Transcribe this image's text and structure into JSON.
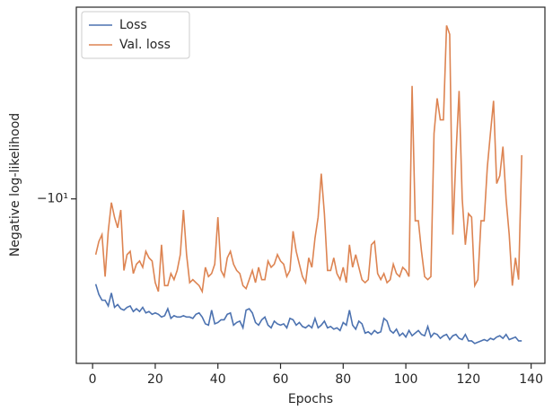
{
  "chart_data": {
    "type": "line",
    "xlabel": "Epochs",
    "ylabel": "Negative log-likelihood",
    "x": [
      1,
      2,
      3,
      4,
      5,
      6,
      7,
      8,
      9,
      10,
      11,
      12,
      13,
      14,
      15,
      16,
      17,
      18,
      19,
      20,
      21,
      22,
      23,
      24,
      25,
      26,
      27,
      28,
      29,
      30,
      31,
      32,
      33,
      34,
      35,
      36,
      37,
      38,
      39,
      40,
      41,
      42,
      43,
      44,
      45,
      46,
      47,
      48,
      49,
      50,
      51,
      52,
      53,
      54,
      55,
      56,
      57,
      58,
      59,
      60,
      61,
      62,
      63,
      64,
      65,
      66,
      67,
      68,
      69,
      70,
      71,
      72,
      73,
      74,
      75,
      76,
      77,
      78,
      79,
      80,
      81,
      82,
      83,
      84,
      85,
      86,
      87,
      88,
      89,
      90,
      91,
      92,
      93,
      94,
      95,
      96,
      97,
      98,
      99,
      100,
      101,
      102,
      103,
      104,
      105,
      106,
      107,
      108,
      109,
      110,
      111,
      112,
      113,
      114,
      115,
      116,
      117,
      118,
      119,
      120,
      121,
      122,
      123,
      124,
      125,
      126,
      127,
      128,
      129,
      130,
      131,
      132,
      133,
      134,
      135,
      136,
      137
    ],
    "series": [
      {
        "name": "Loss",
        "color": "#4c72b0",
        "values": [
          -12.55,
          -12.9,
          -13.1,
          -13.1,
          -13.3,
          -12.85,
          -13.35,
          -13.25,
          -13.4,
          -13.45,
          -13.35,
          -13.3,
          -13.5,
          -13.4,
          -13.5,
          -13.35,
          -13.55,
          -13.5,
          -13.6,
          -13.55,
          -13.6,
          -13.7,
          -13.65,
          -13.4,
          -13.75,
          -13.65,
          -13.7,
          -13.7,
          -13.65,
          -13.7,
          -13.7,
          -13.75,
          -13.6,
          -13.55,
          -13.7,
          -13.95,
          -14.0,
          -13.45,
          -13.95,
          -13.9,
          -13.8,
          -13.8,
          -13.6,
          -13.55,
          -14.0,
          -13.9,
          -13.85,
          -14.1,
          -13.45,
          -13.4,
          -13.55,
          -13.9,
          -14.0,
          -13.8,
          -13.7,
          -14.0,
          -14.1,
          -13.85,
          -13.95,
          -14.0,
          -13.95,
          -14.1,
          -13.75,
          -13.8,
          -14.0,
          -13.9,
          -14.05,
          -14.1,
          -14.0,
          -14.1,
          -13.75,
          -14.1,
          -14.0,
          -13.85,
          -14.1,
          -14.05,
          -14.15,
          -14.1,
          -14.2,
          -13.9,
          -14.0,
          -13.45,
          -14.0,
          -14.15,
          -13.85,
          -13.95,
          -14.3,
          -14.25,
          -14.35,
          -14.2,
          -14.3,
          -14.25,
          -13.75,
          -13.85,
          -14.2,
          -14.3,
          -14.15,
          -14.4,
          -14.3,
          -14.45,
          -14.2,
          -14.4,
          -14.3,
          -14.2,
          -14.35,
          -14.4,
          -14.05,
          -14.45,
          -14.3,
          -14.35,
          -14.5,
          -14.4,
          -14.35,
          -14.55,
          -14.4,
          -14.35,
          -14.5,
          -14.55,
          -14.35,
          -14.6,
          -14.6,
          -14.7,
          -14.65,
          -14.6,
          -14.55,
          -14.6,
          -14.5,
          -14.55,
          -14.45,
          -14.4,
          -14.5,
          -14.35,
          -14.55,
          -14.5,
          -14.45,
          -14.6,
          -14.6
        ]
      },
      {
        "name": "Val. loss",
        "color": "#dd8452",
        "values": [
          -11.6,
          -11.2,
          -11.0,
          -12.3,
          -10.9,
          -10.1,
          -10.5,
          -10.8,
          -10.3,
          -12.1,
          -11.6,
          -11.5,
          -12.2,
          -11.9,
          -11.8,
          -12.0,
          -11.5,
          -11.7,
          -11.8,
          -12.5,
          -12.8,
          -11.3,
          -12.6,
          -12.6,
          -12.2,
          -12.4,
          -12.1,
          -11.6,
          -10.3,
          -11.6,
          -12.5,
          -12.4,
          -12.5,
          -12.6,
          -12.8,
          -12.0,
          -12.3,
          -12.2,
          -11.9,
          -10.5,
          -12.1,
          -12.3,
          -11.7,
          -11.5,
          -11.9,
          -12.1,
          -12.2,
          -12.6,
          -12.7,
          -12.4,
          -12.1,
          -12.5,
          -12.0,
          -12.4,
          -12.4,
          -11.8,
          -12.0,
          -11.9,
          -11.6,
          -11.8,
          -11.9,
          -12.3,
          -12.1,
          -10.9,
          -11.5,
          -11.9,
          -12.3,
          -12.5,
          -11.7,
          -12.0,
          -11.1,
          -10.5,
          -9.35,
          -10.4,
          -12.1,
          -12.1,
          -11.7,
          -12.2,
          -12.4,
          -12.0,
          -12.5,
          -11.3,
          -12.0,
          -11.6,
          -12.0,
          -12.4,
          -12.5,
          -12.4,
          -11.3,
          -11.2,
          -12.2,
          -12.4,
          -12.2,
          -12.5,
          -12.4,
          -11.9,
          -12.2,
          -12.3,
          -12.0,
          -12.1,
          -12.3,
          -7.4,
          -10.6,
          -10.6,
          -11.5,
          -12.3,
          -12.4,
          -12.3,
          -8.4,
          -7.65,
          -8.1,
          -8.1,
          -6.3,
          -6.45,
          -11.0,
          -8.9,
          -7.5,
          -10.0,
          -11.3,
          -10.4,
          -10.5,
          -12.6,
          -12.4,
          -10.6,
          -10.6,
          -9.2,
          -8.4,
          -7.7,
          -9.6,
          -9.4,
          -8.7,
          -10.0,
          -11.0,
          -12.6,
          -11.7,
          -12.4,
          -8.9
        ]
      }
    ],
    "xlim": [
      -5.2,
      144.4
    ],
    "xticks": [
      0,
      20,
      40,
      60,
      80,
      100,
      120,
      140
    ],
    "ylim": [
      -15.5,
      -6
    ],
    "yticks": [
      {
        "value": -10,
        "label": "−10¹"
      }
    ],
    "yscale": "symlog",
    "legend": "upper left"
  }
}
